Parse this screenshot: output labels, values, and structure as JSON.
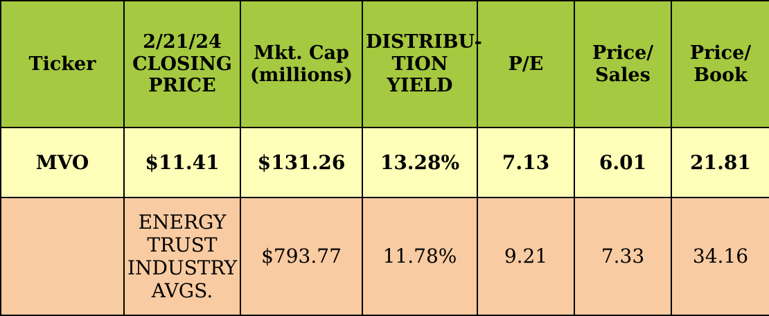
{
  "header": {
    "ticker": [
      "Ticker"
    ],
    "closing_price": [
      "2/21/24",
      "CLOSING",
      "PRICE"
    ],
    "mkt_cap": [
      "Mkt. Cap",
      "(millions)"
    ],
    "distribution_yield": [
      "DISTRIBU-",
      "TION",
      "YIELD"
    ],
    "pe": [
      "P/E"
    ],
    "price_sales": [
      "Price/",
      "Sales"
    ],
    "price_book": [
      "Price/",
      "Book"
    ]
  },
  "rows": [
    {
      "ticker": "MVO",
      "closing_price": "$11.41",
      "mkt_cap": "$131.26",
      "distribution_yield": "13.28%",
      "pe": "7.13",
      "price_sales": "6.01",
      "price_book": "21.81"
    },
    {
      "ticker": "",
      "closing_price_lines": [
        "ENERGY",
        "TRUST",
        "INDUSTRY",
        "AVGS."
      ],
      "mkt_cap": "$793.77",
      "distribution_yield": "11.78%",
      "pe": "9.21",
      "price_sales": "7.33",
      "price_book": "34.16"
    }
  ],
  "colors": {
    "header_bg": "#a5c940",
    "mvo_row_bg": "#fefeb8",
    "industry_row_bg": "#f8cba2",
    "border": "#000000"
  }
}
